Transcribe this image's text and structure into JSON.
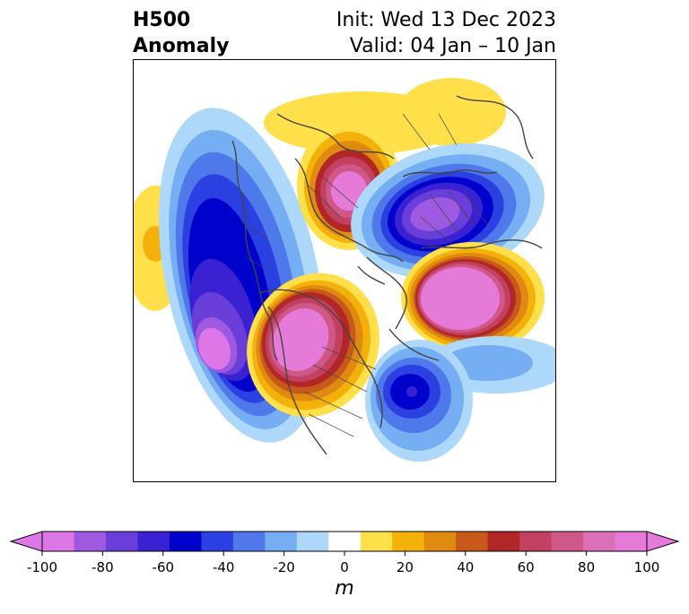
{
  "title": {
    "left_line1": "H500",
    "left_line2": "Anomaly",
    "right_line1": "Init: Wed 13 Dec 2023",
    "right_line2": "Valid: 04 Jan – 10 Jan"
  },
  "colorbar": {
    "units": "m",
    "min": -100,
    "max": 100,
    "step": 10,
    "extend": "both",
    "tick_labels": [
      "-100",
      "-80",
      "-60",
      "-40",
      "-20",
      "0",
      "20",
      "40",
      "60",
      "80",
      "100"
    ],
    "colors": [
      "#dd77e8",
      "#9d5ae0",
      "#6a3fd9",
      "#3a21d2",
      "#0101cc",
      "#2a40e0",
      "#4f78ea",
      "#75aef2",
      "#aed8fa",
      "#ffffff",
      "#ffe04a",
      "#f3b10a",
      "#e08a12",
      "#c75a1a",
      "#b12626",
      "#c24060",
      "#cf5888",
      "#db6fb8",
      "#e57ad8"
    ],
    "underflow_color": "#dd77e8",
    "overflow_color": "#e57ad8"
  },
  "map": {
    "projection": "north-polar-stereographic",
    "variable": "500 hPa geopotential height anomaly"
  }
}
